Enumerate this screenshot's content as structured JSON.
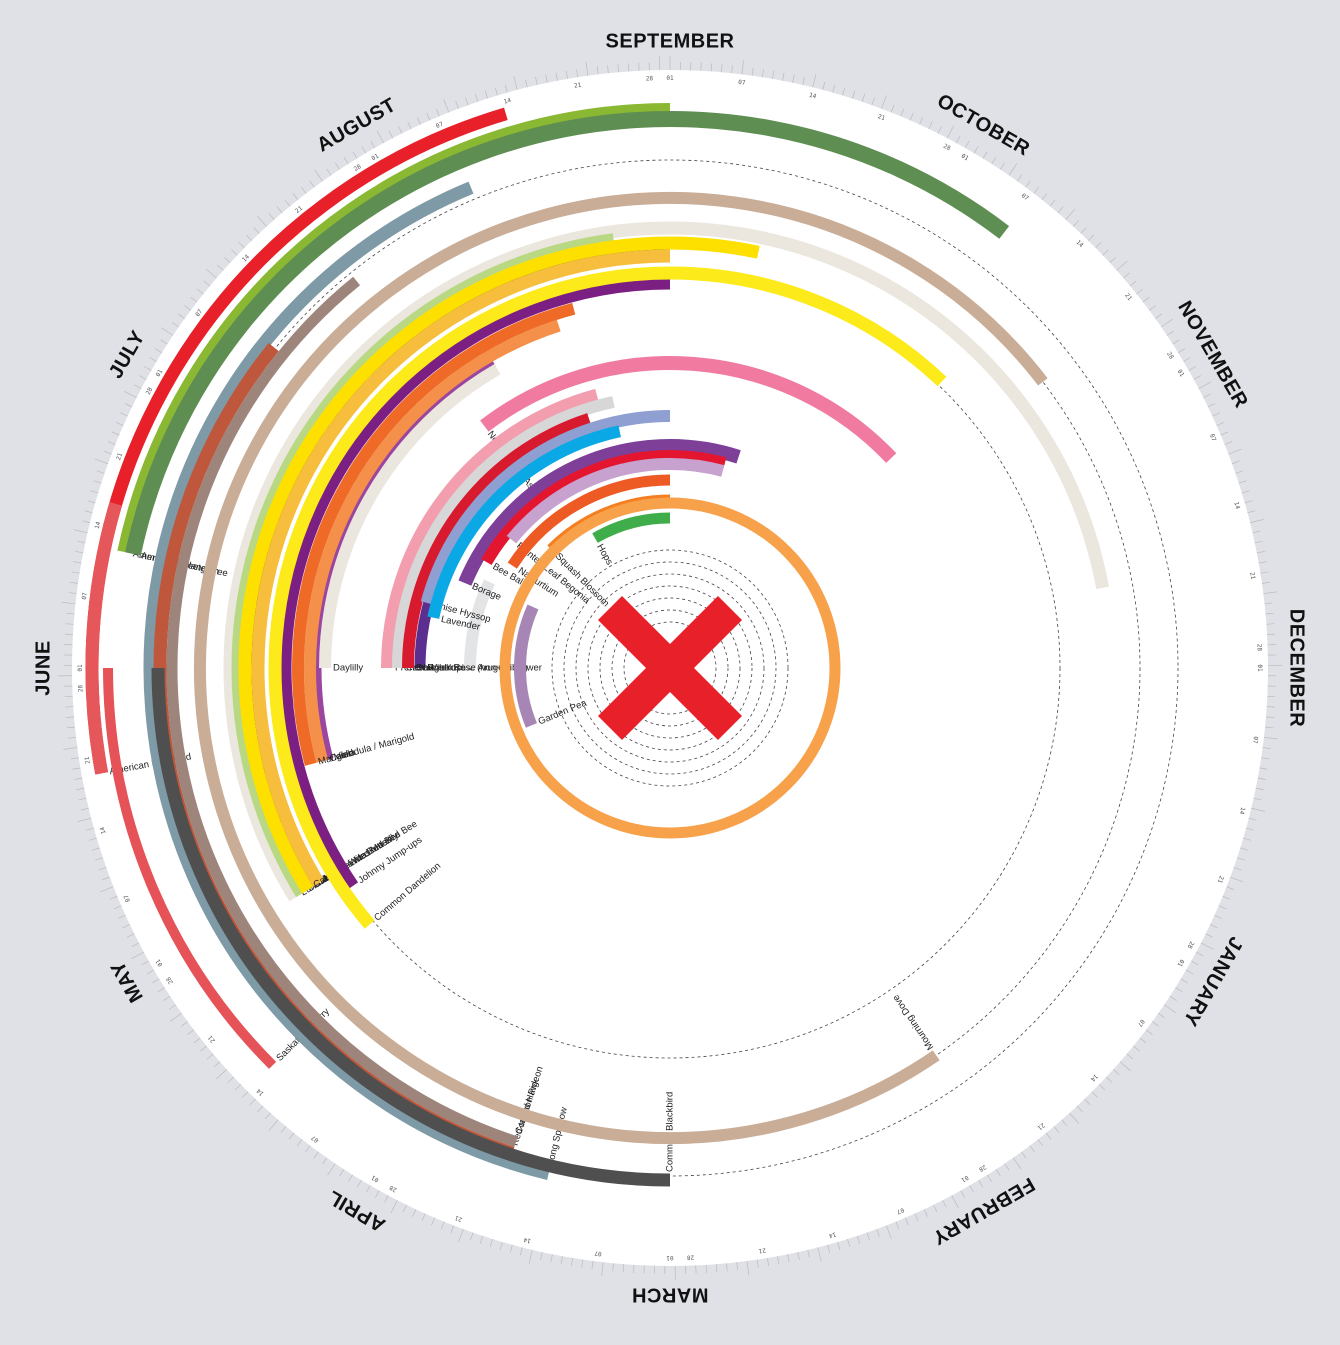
{
  "chart_data": {
    "type": "radial-timeline",
    "title": "",
    "months": [
      "SEPTEMBER",
      "OCTOBER",
      "NOVEMBER",
      "DECEMBER",
      "JANUARY",
      "FEBRUARY",
      "MARCH",
      "APRIL",
      "MAY",
      "JUNE",
      "JULY",
      "AUGUST"
    ],
    "day_marks": [
      "01",
      "07",
      "14",
      "21",
      "28"
    ],
    "series": [
      {
        "name": "American Dogwood",
        "start_month": 8.65,
        "end_month": 11.45,
        "color": "#e8202a",
        "color_start": "#e5575a"
      },
      {
        "name": "American Sweetgum",
        "start_month": 9.4,
        "end_month": 12.0,
        "color": "#8ab833"
      },
      {
        "name": "American Plane Tree",
        "start_month": 9.4,
        "end_month": 13.25,
        "color": "#5e8e52"
      },
      {
        "name": "Saskatoon Berry",
        "start_month": 7.5,
        "end_month": 9.0,
        "color": "#e55257"
      },
      {
        "name": "Song Sparrow",
        "start_month": 6.45,
        "end_month": 11.25,
        "color": "#7e9aa6"
      },
      {
        "name": "Red-tailed Hawk",
        "start_month": 6.6,
        "end_month": 10.3,
        "color": "#be573b"
      },
      {
        "name": "Common Pigeon",
        "start_month": 6.6,
        "end_month": 10.7,
        "color": "#9d857b"
      },
      {
        "name": "Common Blackbird",
        "start_month": 6.0,
        "end_month": 9.0,
        "color": "#4f4f4f"
      },
      {
        "name": "Mourning Dove",
        "start_month": 4.85,
        "end_month": 13.75,
        "color": "#c9ad97"
      },
      {
        "name": "Luna moth",
        "start_month": 7.95,
        "end_month": 14.65,
        "color": "#ebe7de"
      },
      {
        "name": "Bumblebee",
        "start_month": 7.95,
        "end_month": 11.75,
        "color": "#b9d884"
      },
      {
        "name": "Slender-faced Masked Bee",
        "start_month": 7.95,
        "end_month": 12.0,
        "color": "#3b3b3b"
      },
      {
        "name": "Hylaine Masked Bee",
        "start_month": 7.95,
        "end_month": 12.0,
        "color": "#f7bd3c"
      },
      {
        "name": "Cabbage Wite Butterfly",
        "start_month": 7.95,
        "end_month": 12.4,
        "color": "#fde000"
      },
      {
        "name": "Johnny Jump-ups",
        "start_month": 7.85,
        "end_month": 12.0,
        "color": "#7c1f82"
      },
      {
        "name": "Common Dandelion",
        "start_month": 7.65,
        "end_month": 13.45,
        "color": "#fcea1a"
      },
      {
        "name": "Viola",
        "start_month": 8.5,
        "end_month": 11.0,
        "color": "#9a45a0"
      },
      {
        "name": "Calendula / Marigold",
        "start_month": 8.5,
        "end_month": 11.4,
        "color": "#f4904a"
      },
      {
        "name": "Marigold",
        "start_month": 8.5,
        "end_month": 11.5,
        "color": "#ee6a26"
      },
      {
        "name": "Daylilly",
        "start_month": 9.0,
        "end_month": 11.0,
        "color": "#ebe7de"
      },
      {
        "name": "New England Aster",
        "start_month": 10.75,
        "end_month": 13.55,
        "color": "#f07aa0"
      },
      {
        "name": "Wild lupine (non-edible)",
        "start_month": 9.0,
        "end_month": 10.3,
        "color": "#5b2e8f"
      },
      {
        "name": "Arugula Flower",
        "start_month": 9.0,
        "end_month": 9.85,
        "color": "#e3e4e6"
      },
      {
        "name": "Garden Pea",
        "start_month": 8.25,
        "end_month": 9.8,
        "color": "#a786b5"
      },
      {
        "name": "French Rose",
        "start_month": 9.0,
        "end_month": 11.5,
        "color": "#f29eae"
      },
      {
        "name": "Cabbage rose",
        "start_month": 9.0,
        "end_month": 11.6,
        "color": "#d7d7d7"
      },
      {
        "name": "Damask Rose",
        "start_month": 9.0,
        "end_month": 11.4,
        "color": "#d81a2e"
      },
      {
        "name": "Anise Hyssop",
        "start_month": 9.5,
        "end_month": 12.0,
        "color": "#8f9fd1"
      },
      {
        "name": "Lavender",
        "start_month": 9.4,
        "end_month": 11.6,
        "color": "#0ba8e6"
      },
      {
        "name": "Borage",
        "start_month": 9.75,
        "end_month": 12.6,
        "color": "#7d3f98"
      },
      {
        "name": "Bee Balm",
        "start_month": 10.0,
        "end_month": 12.5,
        "color": "#e4162f"
      },
      {
        "name": "Painted Leaf Begonia",
        "start_month": 10.3,
        "end_month": 12.5,
        "color": "#c7a2cf"
      },
      {
        "name": "Nasturtium",
        "start_month": 10.1,
        "end_month": 12.0,
        "color": "#ee5a24"
      },
      {
        "name": "Squash Blossom",
        "start_month": 10.5,
        "end_month": 12.0,
        "color": "#f57f20"
      },
      {
        "name": "Hops",
        "start_month": 11.0,
        "end_month": 12.0,
        "color": "#3fad49"
      },
      {
        "name": "",
        "start_month": 6.0,
        "end_month": 12.0,
        "color": "#f7a14a",
        "full_ring": true
      }
    ]
  },
  "colors": {
    "background": "#dfe1e6",
    "ring": "#ffffff",
    "center_marker": "#e8202a"
  },
  "icons": {
    "center": "x-mark-icon"
  }
}
